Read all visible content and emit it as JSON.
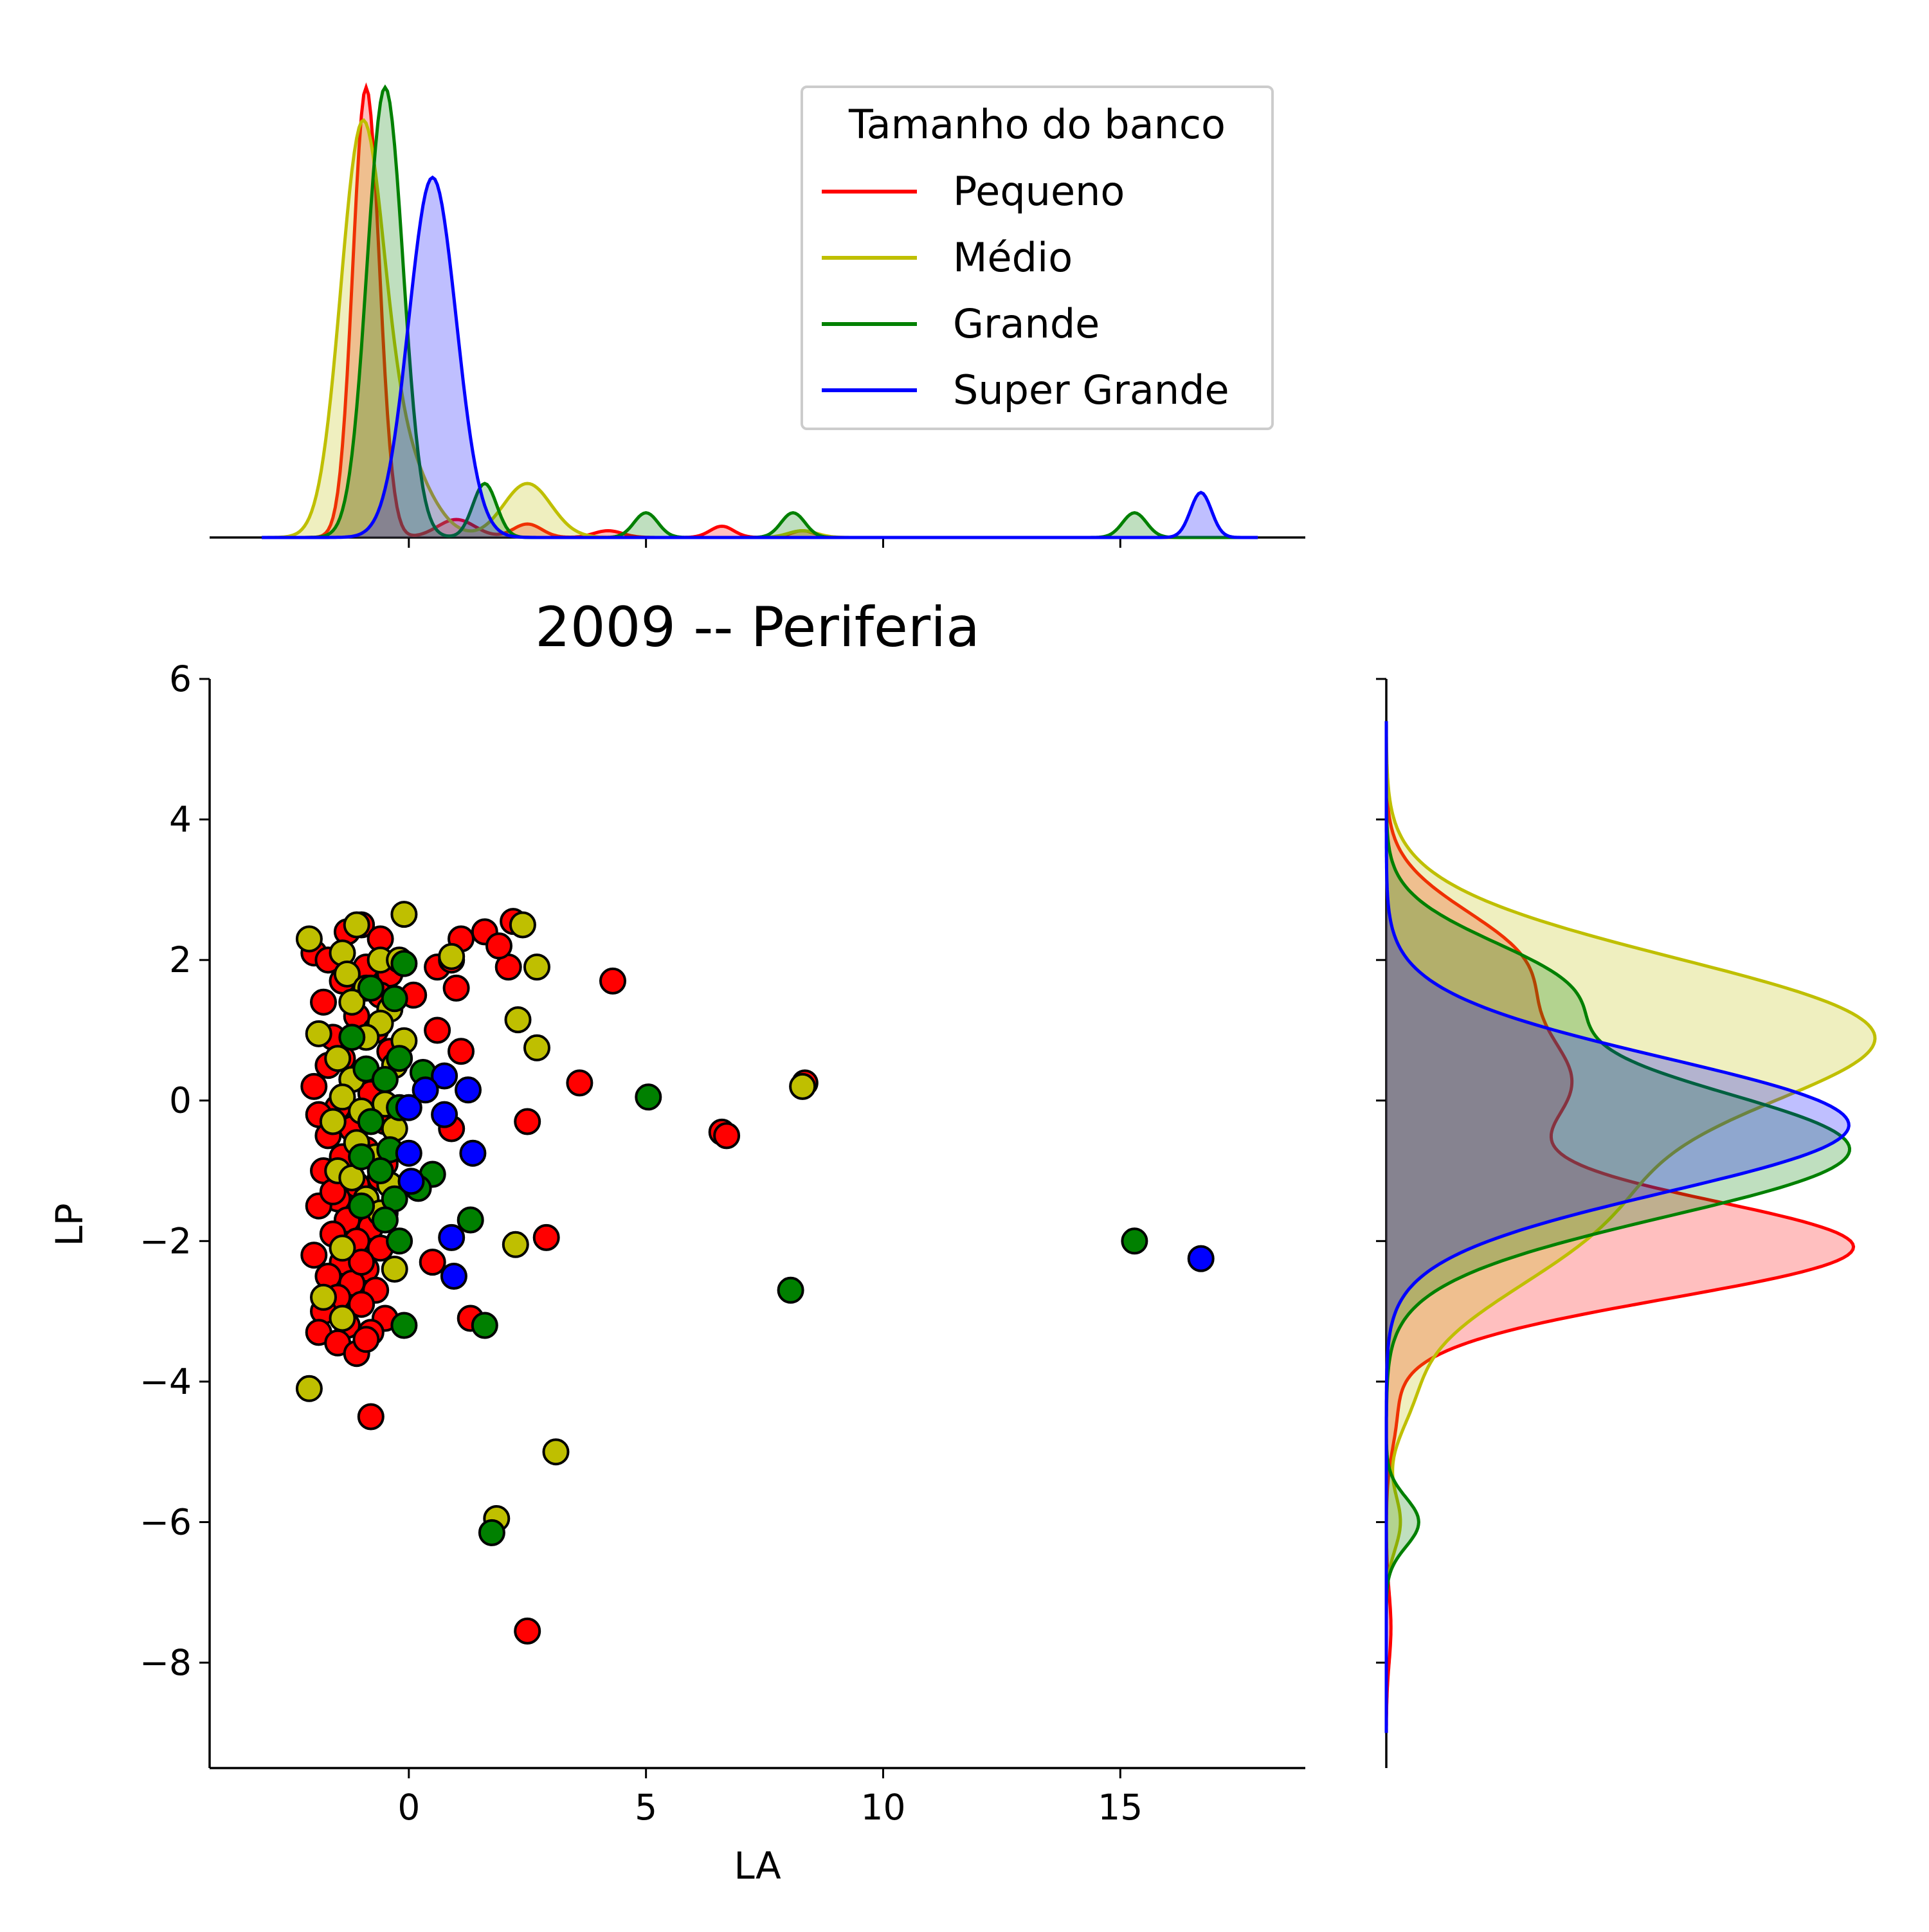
{
  "chart_data": {
    "type": "scatter",
    "title": "2009 -- Periferia",
    "xlabel": "LA",
    "ylabel": "LP",
    "xlim": [
      -4.2,
      18.9
    ],
    "ylim": [
      -9.5,
      6
    ],
    "xticks": [
      0,
      5,
      10,
      15
    ],
    "yticks": [
      6,
      4,
      2,
      0,
      -2,
      -4,
      -6,
      -8
    ],
    "grid": false,
    "legend": {
      "title": "Tamanho do banco",
      "placement": "top-right of top marginal",
      "entries": [
        "Pequeno",
        "Médio",
        "Grande",
        "Super Grande"
      ]
    },
    "marginals": {
      "top": "kde of LA per series (filled)",
      "right": "kde of LP per series (filled)"
    },
    "series": [
      {
        "name": "Pequeno",
        "color": "#ff0000",
        "x_kde": {
          "peaks": [
            [
              -0.9,
              1.0,
              0.28
            ],
            [
              1.0,
              0.04,
              0.4
            ],
            [
              2.5,
              0.03,
              0.3
            ],
            [
              4.2,
              0.015,
              0.3
            ],
            [
              6.6,
              0.025,
              0.25
            ],
            [
              8.3,
              0.015,
              0.25
            ]
          ]
        },
        "y_kde": {
          "peaks": [
            [
              -2.1,
              1.0,
              0.72
            ],
            [
              0.2,
              0.38,
              0.85
            ],
            [
              2.0,
              0.26,
              0.75
            ],
            [
              -4.5,
              0.02,
              0.5
            ],
            [
              -7.5,
              0.01,
              0.5
            ]
          ]
        },
        "points": [
          [
            -1.3,
            2.4
          ],
          [
            -1.0,
            2.5
          ],
          [
            -0.6,
            2.3
          ],
          [
            -2.0,
            2.1
          ],
          [
            -1.7,
            2.0
          ],
          [
            -0.4,
            1.8
          ],
          [
            -1.4,
            1.7
          ],
          [
            -0.9,
            1.9
          ],
          [
            -1.8,
            1.4
          ],
          [
            -0.6,
            1.5
          ],
          [
            -1.1,
            1.2
          ],
          [
            -1.6,
            0.9
          ],
          [
            -0.4,
            0.7
          ],
          [
            -1.7,
            0.5
          ],
          [
            -1.2,
            0.3
          ],
          [
            -2.0,
            0.2
          ],
          [
            -0.8,
            0.1
          ],
          [
            -1.5,
            -0.1
          ],
          [
            -1.9,
            -0.2
          ],
          [
            -0.5,
            -0.3
          ],
          [
            -1.2,
            -0.4
          ],
          [
            -1.7,
            -0.5
          ],
          [
            -0.9,
            -0.7
          ],
          [
            -1.4,
            -0.8
          ],
          [
            -1.8,
            -1.0
          ],
          [
            -0.6,
            -1.1
          ],
          [
            -1.1,
            -1.2
          ],
          [
            -1.5,
            -1.4
          ],
          [
            -1.9,
            -1.5
          ],
          [
            -0.5,
            -1.6
          ],
          [
            -1.3,
            -1.7
          ],
          [
            -0.8,
            -1.8
          ],
          [
            -1.6,
            -1.9
          ],
          [
            -1.1,
            -2.0
          ],
          [
            -2.0,
            -2.2
          ],
          [
            -0.6,
            -2.1
          ],
          [
            -1.4,
            -2.3
          ],
          [
            -0.9,
            -2.4
          ],
          [
            -1.7,
            -2.5
          ],
          [
            -1.2,
            -2.6
          ],
          [
            -0.7,
            -2.7
          ],
          [
            -1.5,
            -2.8
          ],
          [
            -1.0,
            -2.9
          ],
          [
            -1.8,
            -3.0
          ],
          [
            -0.5,
            -3.1
          ],
          [
            -1.3,
            -3.2
          ],
          [
            -1.9,
            -3.3
          ],
          [
            -0.8,
            -3.3
          ],
          [
            -1.5,
            -3.45
          ],
          [
            -1.1,
            -3.6
          ],
          [
            -0.9,
            -3.4
          ],
          [
            -1.6,
            -1.3
          ],
          [
            -0.5,
            -0.9
          ],
          [
            -1.4,
            0.6
          ],
          [
            -0.7,
            1.0
          ],
          [
            -1.0,
            -2.3
          ],
          [
            -0.8,
            -4.5
          ],
          [
            0.1,
            1.5
          ],
          [
            0.6,
            1.9
          ],
          [
            0.9,
            2.0
          ],
          [
            1.1,
            2.3
          ],
          [
            1.6,
            2.4
          ],
          [
            2.2,
            2.55
          ],
          [
            2.1,
            1.9
          ],
          [
            1.9,
            2.2
          ],
          [
            1.0,
            1.6
          ],
          [
            0.6,
            1.0
          ],
          [
            1.1,
            0.7
          ],
          [
            0.9,
            -0.4
          ],
          [
            0.5,
            -2.3
          ],
          [
            1.3,
            -3.1
          ],
          [
            4.3,
            1.7
          ],
          [
            3.6,
            0.25
          ],
          [
            2.5,
            -0.3
          ],
          [
            2.9,
            -1.95
          ],
          [
            6.6,
            -0.45
          ],
          [
            6.7,
            -0.5
          ],
          [
            8.35,
            0.25
          ],
          [
            2.5,
            -7.55
          ]
        ]
      },
      {
        "name": "Médio",
        "color": "#bfbf00",
        "x_kde": {
          "peaks": [
            [
              -1.0,
              0.85,
              0.45
            ],
            [
              -0.2,
              0.18,
              0.6
            ],
            [
              2.5,
              0.12,
              0.5
            ],
            [
              8.3,
              0.015,
              0.3
            ]
          ]
        },
        "y_kde": {
          "peaks": [
            [
              1.0,
              1.0,
              1.05
            ],
            [
              -1.5,
              0.45,
              1.2
            ],
            [
              -6.0,
              0.03,
              0.4
            ],
            [
              -4.3,
              0.03,
              0.5
            ]
          ]
        },
        "points": [
          [
            -2.1,
            2.3
          ],
          [
            -1.1,
            2.5
          ],
          [
            -1.4,
            2.1
          ],
          [
            -0.6,
            2.0
          ],
          [
            -0.2,
            2.0
          ],
          [
            -1.3,
            1.8
          ],
          [
            -0.9,
            1.6
          ],
          [
            -1.2,
            1.4
          ],
          [
            -0.4,
            1.3
          ],
          [
            -0.6,
            1.1
          ],
          [
            -1.9,
            0.95
          ],
          [
            -0.9,
            0.9
          ],
          [
            -0.1,
            0.85
          ],
          [
            -1.5,
            0.6
          ],
          [
            -0.3,
            0.5
          ],
          [
            -1.2,
            0.3
          ],
          [
            -1.4,
            0.05
          ],
          [
            -0.5,
            -0.05
          ],
          [
            -1.0,
            -0.15
          ],
          [
            -1.6,
            -0.3
          ],
          [
            -0.3,
            -0.4
          ],
          [
            -1.1,
            -0.6
          ],
          [
            -0.7,
            -0.8
          ],
          [
            -1.5,
            -1.0
          ],
          [
            -1.2,
            -1.1
          ],
          [
            -0.4,
            -1.2
          ],
          [
            -0.9,
            -1.4
          ],
          [
            -0.6,
            -1.6
          ],
          [
            -1.4,
            -2.1
          ],
          [
            -0.3,
            -2.4
          ],
          [
            -1.8,
            -2.8
          ],
          [
            -1.4,
            -3.1
          ],
          [
            -2.1,
            -4.1
          ],
          [
            -0.1,
            2.65
          ],
          [
            2.4,
            2.5
          ],
          [
            2.7,
            1.9
          ],
          [
            2.3,
            1.15
          ],
          [
            2.7,
            0.75
          ],
          [
            0.9,
            2.05
          ],
          [
            8.3,
            0.2
          ],
          [
            2.25,
            -2.05
          ],
          [
            3.1,
            -5.0
          ],
          [
            1.85,
            -5.95
          ]
        ]
      },
      {
        "name": "Grande",
        "color": "#008000",
        "x_kde": {
          "peaks": [
            [
              -0.5,
              1.0,
              0.38
            ],
            [
              1.6,
              0.12,
              0.25
            ],
            [
              5.0,
              0.055,
              0.25
            ],
            [
              8.1,
              0.055,
              0.25
            ],
            [
              15.3,
              0.055,
              0.25
            ]
          ]
        },
        "y_kde": {
          "peaks": [
            [
              -0.7,
              1.0,
              0.95
            ],
            [
              1.6,
              0.35,
              0.7
            ],
            [
              -6.0,
              0.07,
              0.35
            ]
          ]
        },
        "points": [
          [
            -0.1,
            1.95
          ],
          [
            -0.3,
            1.45
          ],
          [
            -0.8,
            1.6
          ],
          [
            -1.2,
            0.9
          ],
          [
            -0.2,
            0.6
          ],
          [
            -0.9,
            0.45
          ],
          [
            0.3,
            0.4
          ],
          [
            -0.5,
            0.3
          ],
          [
            -0.2,
            -0.1
          ],
          [
            -0.8,
            -0.3
          ],
          [
            -0.4,
            -0.7
          ],
          [
            -1.0,
            -0.8
          ],
          [
            -0.6,
            -1.0
          ],
          [
            0.5,
            -1.05
          ],
          [
            0.2,
            -1.25
          ],
          [
            -0.3,
            -1.4
          ],
          [
            -1.0,
            -1.5
          ],
          [
            -0.5,
            -1.7
          ],
          [
            -0.2,
            -2.0
          ],
          [
            1.3,
            -1.7
          ],
          [
            -0.1,
            -3.2
          ],
          [
            1.6,
            -3.2
          ],
          [
            1.75,
            -6.15
          ],
          [
            5.05,
            0.05
          ],
          [
            8.05,
            -2.7
          ],
          [
            15.3,
            -2.0
          ]
        ]
      },
      {
        "name": "Super Grande",
        "color": "#0000ff",
        "x_kde": {
          "peaks": [
            [
              0.5,
              0.8,
              0.5
            ],
            [
              16.7,
              0.1,
              0.22
            ]
          ]
        },
        "y_kde": {
          "peaks": [
            [
              -0.35,
              1.0,
              0.95
            ]
          ]
        },
        "points": [
          [
            0.75,
            0.35
          ],
          [
            0.35,
            0.15
          ],
          [
            1.25,
            0.15
          ],
          [
            0.0,
            -0.1
          ],
          [
            0.75,
            -0.2
          ],
          [
            1.35,
            -0.75
          ],
          [
            0.0,
            -0.75
          ],
          [
            0.05,
            -1.15
          ],
          [
            0.9,
            -1.95
          ],
          [
            0.95,
            -2.5
          ],
          [
            16.7,
            -2.25
          ]
        ]
      }
    ]
  }
}
